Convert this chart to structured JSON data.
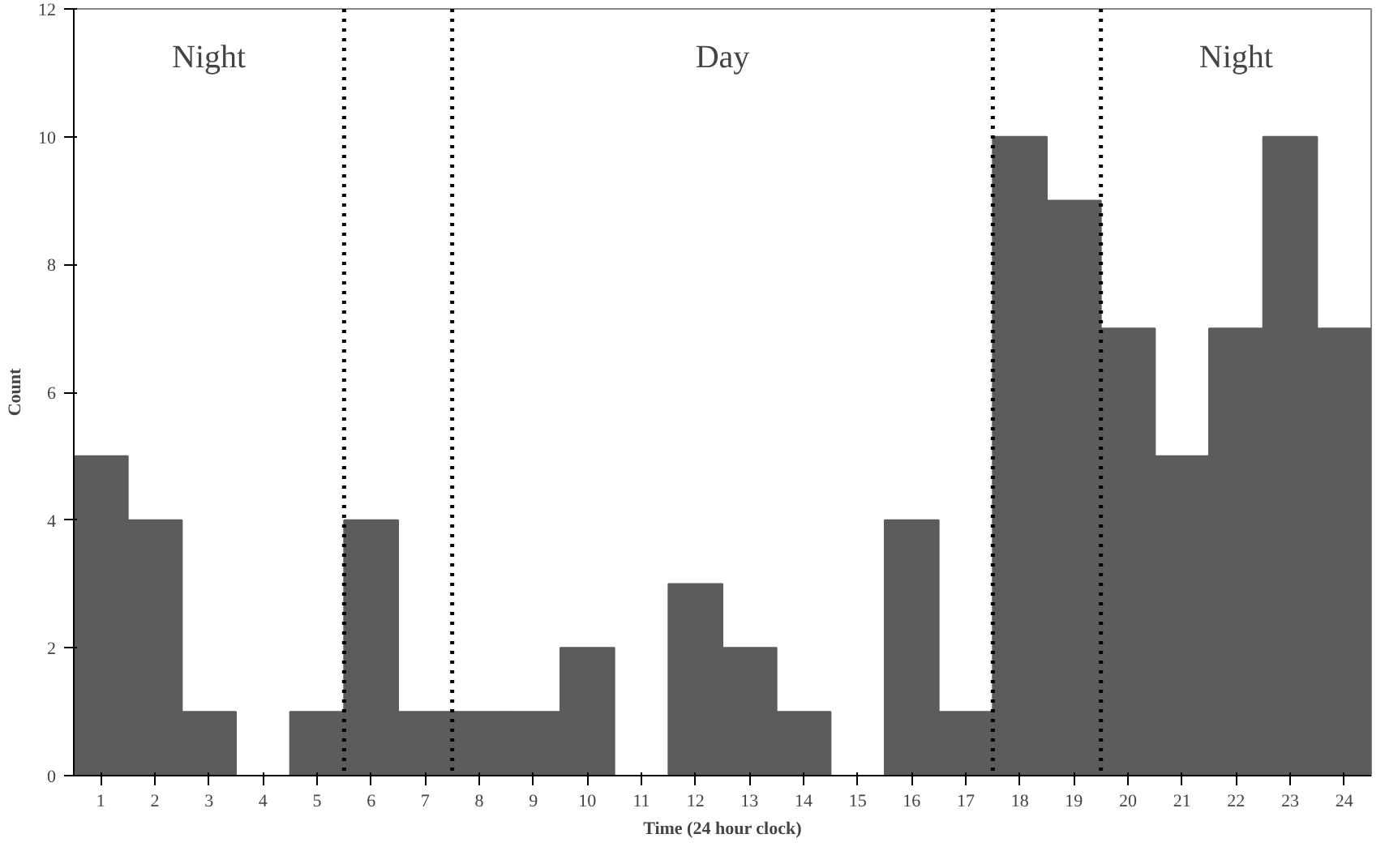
{
  "chart_data": {
    "type": "bar",
    "xlabel": "Time (24 hour clock)",
    "ylabel": "Count",
    "x": [
      1,
      2,
      3,
      4,
      5,
      6,
      7,
      8,
      9,
      10,
      11,
      12,
      13,
      14,
      15,
      16,
      17,
      18,
      19,
      20,
      21,
      22,
      23,
      24
    ],
    "values": [
      5,
      4,
      1,
      0,
      1,
      4,
      1,
      1,
      1,
      2,
      0,
      3,
      2,
      1,
      0,
      4,
      1,
      10,
      9,
      7,
      5,
      7,
      10,
      7
    ],
    "color": "#5c5c5c",
    "xlim": [
      0.5,
      24.5
    ],
    "xticks": [
      1,
      2,
      3,
      4,
      5,
      6,
      7,
      8,
      9,
      10,
      11,
      12,
      13,
      14,
      15,
      16,
      17,
      18,
      19,
      20,
      21,
      22,
      23,
      24
    ],
    "ylim": [
      0,
      12
    ],
    "yticks": [
      0,
      2,
      4,
      6,
      8,
      10,
      12
    ],
    "grid": false,
    "ref_lines": [
      {
        "axis": "x",
        "value": 5.5,
        "line_style": "dotted",
        "color": "#000000"
      },
      {
        "axis": "x",
        "value": 7.5,
        "line_style": "dotted",
        "color": "#000000"
      },
      {
        "axis": "x",
        "value": 17.5,
        "line_style": "dotted",
        "color": "#000000"
      },
      {
        "axis": "x",
        "value": 19.5,
        "line_style": "dotted",
        "color": "#000000"
      }
    ],
    "annotations": [
      "Night",
      "Day",
      "Night"
    ]
  }
}
